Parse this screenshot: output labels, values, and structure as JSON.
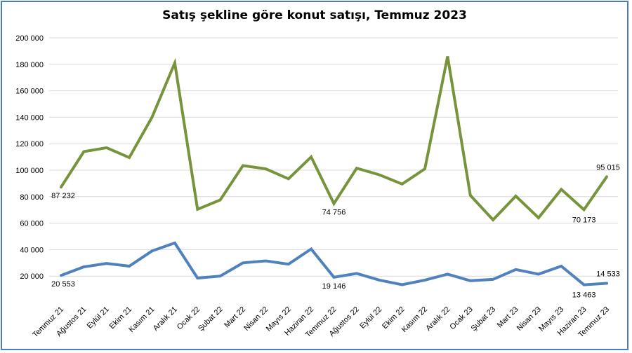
{
  "chart_data": {
    "type": "line",
    "title": "Satış şekline göre konut satışı, Temmuz 2023",
    "categories": [
      "Temmuz 21",
      "Ağustos 21",
      "Eylül 21",
      "Ekim 21",
      "Kasım 21",
      "Aralık 21",
      "Ocak 22",
      "Şubat 22",
      "Mart 22",
      "Nisan 22",
      "Mayıs 22",
      "Haziran 22",
      "Temmuz 22",
      "Ağustos 22",
      "Eylül 22",
      "Ekim 22",
      "Kasım 22",
      "Aralık 22",
      "Ocak 23",
      "Şubat 23",
      "Mart 23",
      "Nisan 23",
      "Mayıs 23",
      "Haziran 23",
      "Temmuz 23"
    ],
    "ylim": [
      0,
      200000
    ],
    "yticks": [
      20000,
      40000,
      60000,
      80000,
      100000,
      120000,
      140000,
      160000,
      180000,
      200000
    ],
    "ytick_labels": [
      "20 000",
      "40 000",
      "60 000",
      "80 000",
      "100 000",
      "120 000",
      "140 000",
      "160 000",
      "180 000",
      "200 000"
    ],
    "grid": true,
    "series": [
      {
        "color": "#77933c",
        "values": [
          87232,
          114000,
          117000,
          109500,
          140000,
          181000,
          70500,
          77500,
          103500,
          101000,
          93500,
          110000,
          74756,
          101500,
          96500,
          89500,
          101000,
          186000,
          81000,
          62500,
          80500,
          64000,
          85500,
          70173,
          95015
        ],
        "labels": [
          {
            "index": 0,
            "text": "87 232"
          },
          {
            "index": 12,
            "text": "74 756"
          },
          {
            "index": 23,
            "text": "70 173"
          },
          {
            "index": 24,
            "text": "95 015"
          }
        ]
      },
      {
        "color": "#4f81bd",
        "values": [
          20553,
          27000,
          29500,
          27500,
          39000,
          45000,
          18500,
          20000,
          30000,
          31500,
          29000,
          40500,
          19146,
          22000,
          17000,
          13500,
          17000,
          21500,
          16500,
          17500,
          25000,
          21500,
          27500,
          13463,
          14533
        ],
        "labels": [
          {
            "index": 0,
            "text": "20 553"
          },
          {
            "index": 12,
            "text": "19 146"
          },
          {
            "index": 23,
            "text": "13 463"
          },
          {
            "index": 24,
            "text": "14 533"
          }
        ]
      }
    ]
  }
}
